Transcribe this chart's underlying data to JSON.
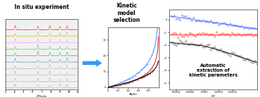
{
  "title_left": "In situ experiment",
  "title_mid": "Kinetic\nmodel\nselection",
  "title_right": "Automatic\nextraction of\nkinetic parameters",
  "bg_color": "#ffffff",
  "arrow_color": "#3399ff",
  "xrd_colors": [
    "#aaaaaa",
    "#aaaaaa",
    "#aaaaaa",
    "#aaaaaa",
    "#5588cc",
    "#00aaaa",
    "#33cc33",
    "#ff88ff",
    "#bbbb00",
    "#ff2200"
  ],
  "kin_colors": [
    "#0000ff",
    "#ff0000",
    "#000000"
  ],
  "arr_colors_line": [
    "#0000cc",
    "#ff0000",
    "#000000"
  ],
  "arr_colors_scatter": [
    "#4444ff",
    "#ff4444",
    "#444444"
  ]
}
